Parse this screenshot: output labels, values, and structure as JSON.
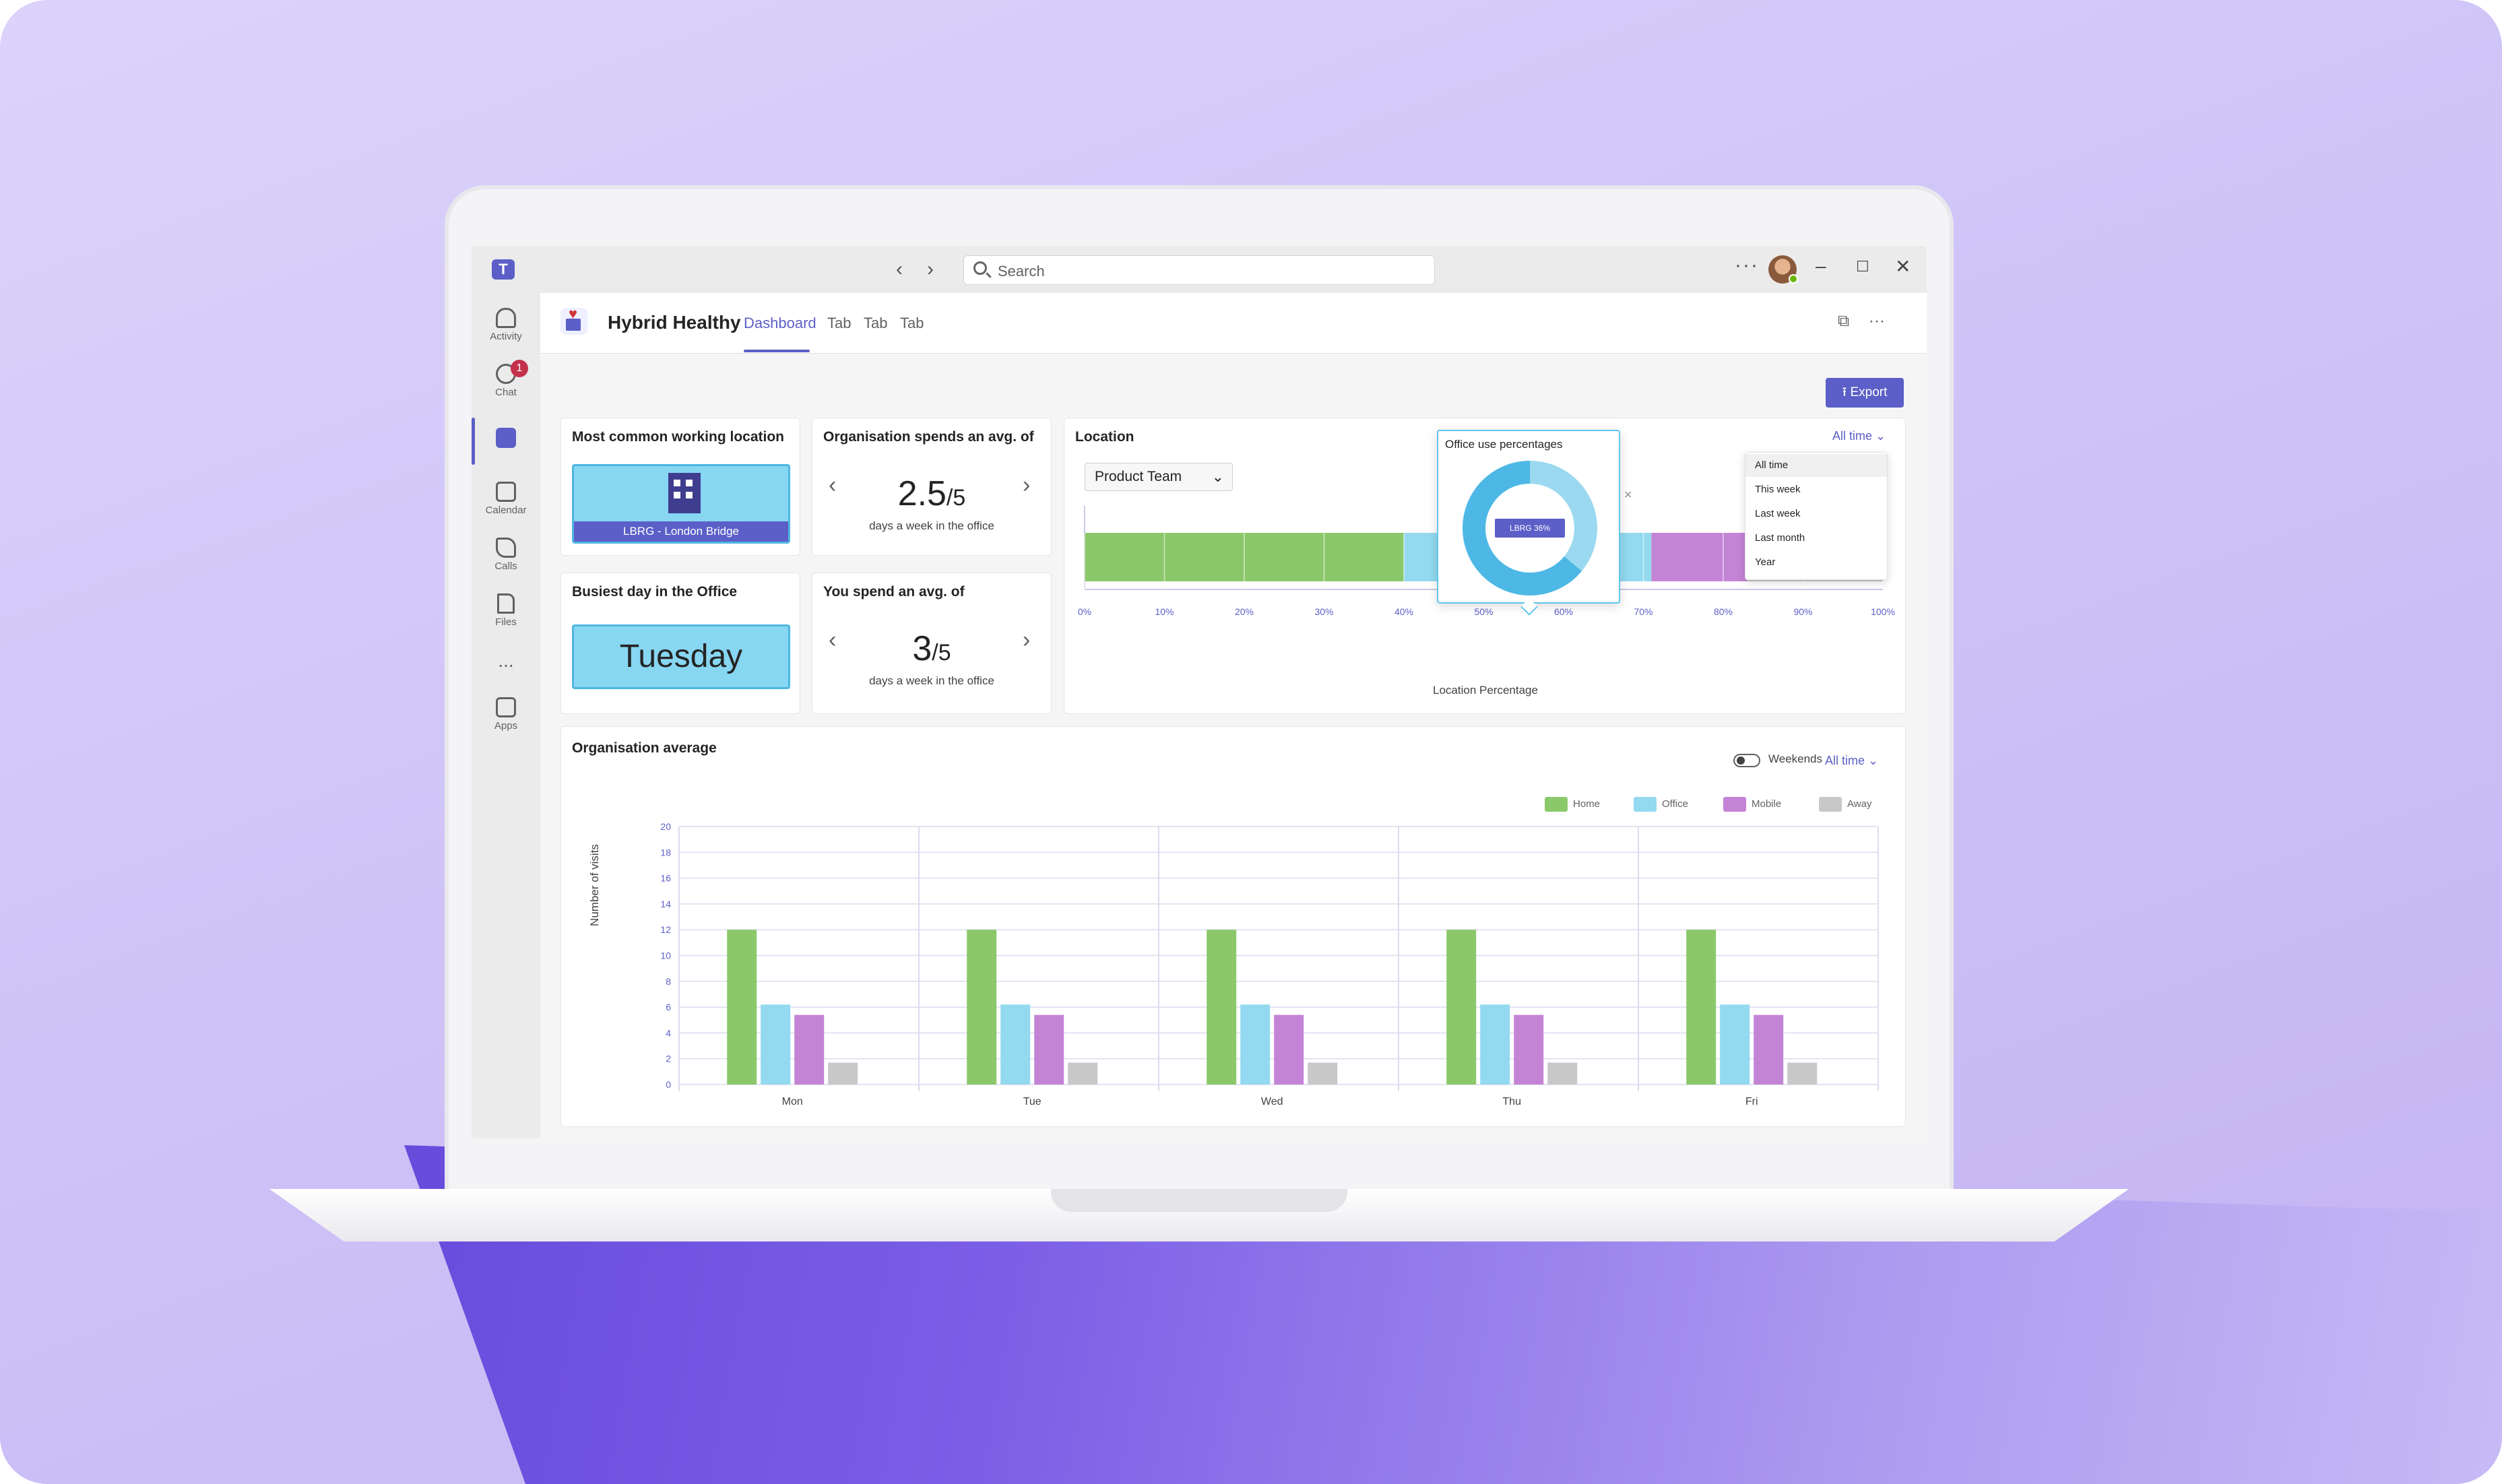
{
  "window": {
    "search_placeholder": "Search"
  },
  "rail": {
    "items": [
      {
        "label": "Activity",
        "icon": "bell-icon"
      },
      {
        "label": "Chat",
        "icon": "chat-icon",
        "badge": "1"
      },
      {
        "label": "",
        "icon": "hybrid-healthy-app-icon"
      },
      {
        "label": "Calendar",
        "icon": "calendar-icon"
      },
      {
        "label": "Calls",
        "icon": "phone-icon"
      },
      {
        "label": "Files",
        "icon": "file-icon"
      },
      {
        "label": "...",
        "icon": "more-icon"
      },
      {
        "label": "Apps",
        "icon": "add-app-icon"
      }
    ]
  },
  "app": {
    "title": "Hybrid Healthy",
    "tabs": [
      "Dashboard",
      "Tab",
      "Tab",
      "Tab"
    ],
    "export_label": "Export"
  },
  "cards": {
    "common_location": {
      "title": "Most common working location",
      "value": "LBRG - London Bridge"
    },
    "busiest_day": {
      "title": "Busiest day in the Office",
      "value": "Tuesday"
    },
    "org_avg": {
      "title": "Organisation spends an avg. of",
      "value": "2.5",
      "denominator": "/5",
      "sub": "days a week in the office"
    },
    "you_avg": {
      "title": "You spend an avg. of",
      "value": "3",
      "denominator": "/5",
      "sub": "days a week in the office"
    }
  },
  "location": {
    "title": "Location",
    "team_select": "Product Team",
    "range_label": "All time",
    "menu": [
      "All time",
      "This week",
      "Last week",
      "Last month",
      "Year"
    ],
    "popup": {
      "title": "Office use percentages",
      "label": "LBRG 36%"
    },
    "x_ticks": [
      "0%",
      "10%",
      "20%",
      "30%",
      "40%",
      "50%",
      "60%",
      "70%",
      "80%",
      "90%",
      "100%"
    ],
    "x_title": "Location Percentage",
    "colors": {
      "home": "#8bc86b",
      "office": "#93d9f0",
      "mobile": "#c484d6",
      "away": "#c8c8c8"
    }
  },
  "org_average": {
    "title": "Organisation average",
    "weekends_label": "Weekends",
    "range_label": "All time",
    "y_title": "Number of visits",
    "legend": [
      {
        "name": "Home",
        "color": "#8bc86b"
      },
      {
        "name": "Office",
        "color": "#93d9f0"
      },
      {
        "name": "Mobile",
        "color": "#c484d6"
      },
      {
        "name": "Away",
        "color": "#c8c8c8"
      }
    ]
  },
  "chart_data": [
    {
      "type": "bar",
      "orientation": "horizontal-stacked",
      "title": "Location",
      "xlabel": "Location Percentage",
      "xlim": [
        0,
        100
      ],
      "series": [
        {
          "name": "Home",
          "values": [
            40
          ]
        },
        {
          "name": "Office",
          "values": [
            31
          ]
        },
        {
          "name": "Mobile",
          "values": [
            12
          ]
        },
        {
          "name": "Away",
          "values": [
            17
          ]
        }
      ]
    },
    {
      "type": "pie",
      "title": "Office use percentages",
      "values": [
        36,
        64
      ]
    },
    {
      "type": "bar",
      "title": "Organisation average",
      "categories": [
        "Mon",
        "Tue",
        "Wed",
        "Thu",
        "Fri"
      ],
      "ylabel": "Number of visits",
      "ylim": [
        0,
        20
      ],
      "yticks": [
        0,
        2,
        4,
        6,
        8,
        10,
        12,
        14,
        16,
        18,
        20
      ],
      "series": [
        {
          "name": "Home",
          "values": [
            12,
            12,
            12,
            12,
            12
          ]
        },
        {
          "name": "Office",
          "values": [
            6.2,
            6.2,
            6.2,
            6.2,
            6.2
          ]
        },
        {
          "name": "Mobile",
          "values": [
            5.4,
            5.4,
            5.4,
            5.4,
            5.4
          ]
        },
        {
          "name": "Away",
          "values": [
            1.7,
            1.7,
            1.7,
            1.7,
            1.7
          ]
        }
      ],
      "grid": true,
      "legend": "top-right"
    }
  ]
}
